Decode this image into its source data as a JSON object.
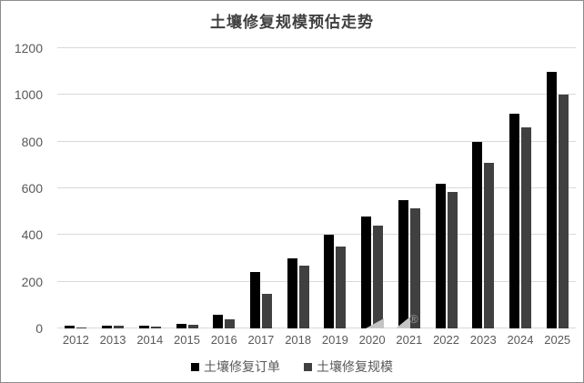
{
  "window": {
    "background": "#ffffff",
    "border_color": "#8c8c8c"
  },
  "chart_data": {
    "type": "bar",
    "title": "土壤修复规模预估走势",
    "categories": [
      "2012",
      "2013",
      "2014",
      "2015",
      "2016",
      "2017",
      "2018",
      "2019",
      "2020",
      "2021",
      "2022",
      "2023",
      "2024",
      "2025"
    ],
    "series": [
      {
        "name": "土壤修复订单",
        "color": "#000000",
        "values": [
          10,
          10,
          10,
          20,
          60,
          240,
          300,
          400,
          480,
          550,
          620,
          800,
          920,
          1100
        ]
      },
      {
        "name": "土壤修复规模",
        "color": "#404040",
        "values": [
          5,
          10,
          8,
          15,
          40,
          150,
          270,
          350,
          440,
          515,
          585,
          710,
          860,
          1000
        ]
      }
    ],
    "xlabel": "",
    "ylabel": "",
    "ylim": [
      0,
      1200
    ],
    "yticks": [
      0,
      200,
      400,
      600,
      800,
      1000,
      1200
    ],
    "grid": true,
    "legend_position": "bottom",
    "colors": {
      "gridline": "#d9d9d9",
      "axis_text": "#595959",
      "title_text": "#3f3f3f"
    }
  },
  "watermark": {
    "registered_mark": "®",
    "color": "#c4c4c4"
  }
}
